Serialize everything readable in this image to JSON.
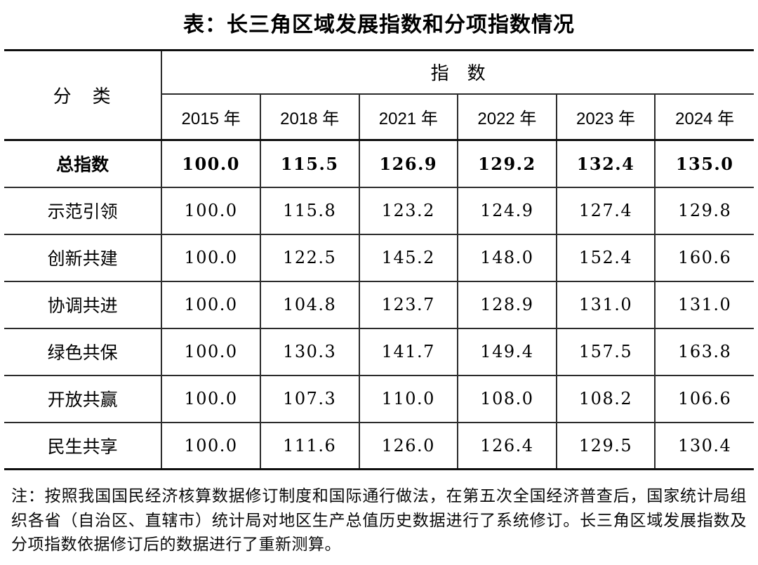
{
  "title": "表：长三角区域发展指数和分项指数情况",
  "table": {
    "category_header": "分　类",
    "index_header": "指　数",
    "year_headers": [
      "2015 年",
      "2018 年",
      "2021 年",
      "2022 年",
      "2023 年",
      "2024 年"
    ],
    "rows": [
      {
        "label": "总指数",
        "values": [
          "100.0",
          "115.5",
          "126.9",
          "129.2",
          "132.4",
          "135.0"
        ]
      },
      {
        "label": "示范引领",
        "values": [
          "100.0",
          "115.8",
          "123.2",
          "124.9",
          "127.4",
          "129.8"
        ]
      },
      {
        "label": "创新共建",
        "values": [
          "100.0",
          "122.5",
          "145.2",
          "148.0",
          "152.4",
          "160.6"
        ]
      },
      {
        "label": "协调共进",
        "values": [
          "100.0",
          "104.8",
          "123.7",
          "128.9",
          "131.0",
          "131.0"
        ]
      },
      {
        "label": "绿色共保",
        "values": [
          "100.0",
          "130.3",
          "141.7",
          "149.4",
          "157.5",
          "163.8"
        ]
      },
      {
        "label": "开放共赢",
        "values": [
          "100.0",
          "107.3",
          "110.0",
          "108.0",
          "108.2",
          "106.6"
        ]
      },
      {
        "label": "民生共享",
        "values": [
          "100.0",
          "111.6",
          "126.0",
          "126.4",
          "129.5",
          "130.4"
        ]
      }
    ]
  },
  "note": "注：按照我国国民经济核算数据修订制度和国际通行做法，在第五次全国经济普查后，国家统计局组织各省（自治区、直辖市）统计局对地区生产总值历史数据进行了系统修订。长三角区域发展指数及分项指数依据修订后的数据进行了重新测算。",
  "colors": {
    "border_heavy": "#0f0f0f",
    "border_light": "#2b2b2b",
    "text": "#000000",
    "background": "#ffffff"
  },
  "chart_data": {
    "type": "table",
    "title": "表：长三角区域发展指数和分项指数情况",
    "categories": [
      "2015",
      "2018",
      "2021",
      "2022",
      "2023",
      "2024"
    ],
    "series": [
      {
        "name": "总指数",
        "values": [
          100.0,
          115.5,
          126.9,
          129.2,
          132.4,
          135.0
        ]
      },
      {
        "name": "示范引领",
        "values": [
          100.0,
          115.8,
          123.2,
          124.9,
          127.4,
          129.8
        ]
      },
      {
        "name": "创新共建",
        "values": [
          100.0,
          122.5,
          145.2,
          148.0,
          152.4,
          160.6
        ]
      },
      {
        "name": "协调共进",
        "values": [
          100.0,
          104.8,
          123.7,
          128.9,
          131.0,
          131.0
        ]
      },
      {
        "name": "绿色共保",
        "values": [
          100.0,
          130.3,
          141.7,
          149.4,
          157.5,
          163.8
        ]
      },
      {
        "name": "开放共赢",
        "values": [
          100.0,
          107.3,
          110.0,
          108.0,
          108.2,
          106.6
        ]
      },
      {
        "name": "民生共享",
        "values": [
          100.0,
          111.6,
          126.0,
          126.4,
          129.5,
          130.4
        ]
      }
    ]
  }
}
